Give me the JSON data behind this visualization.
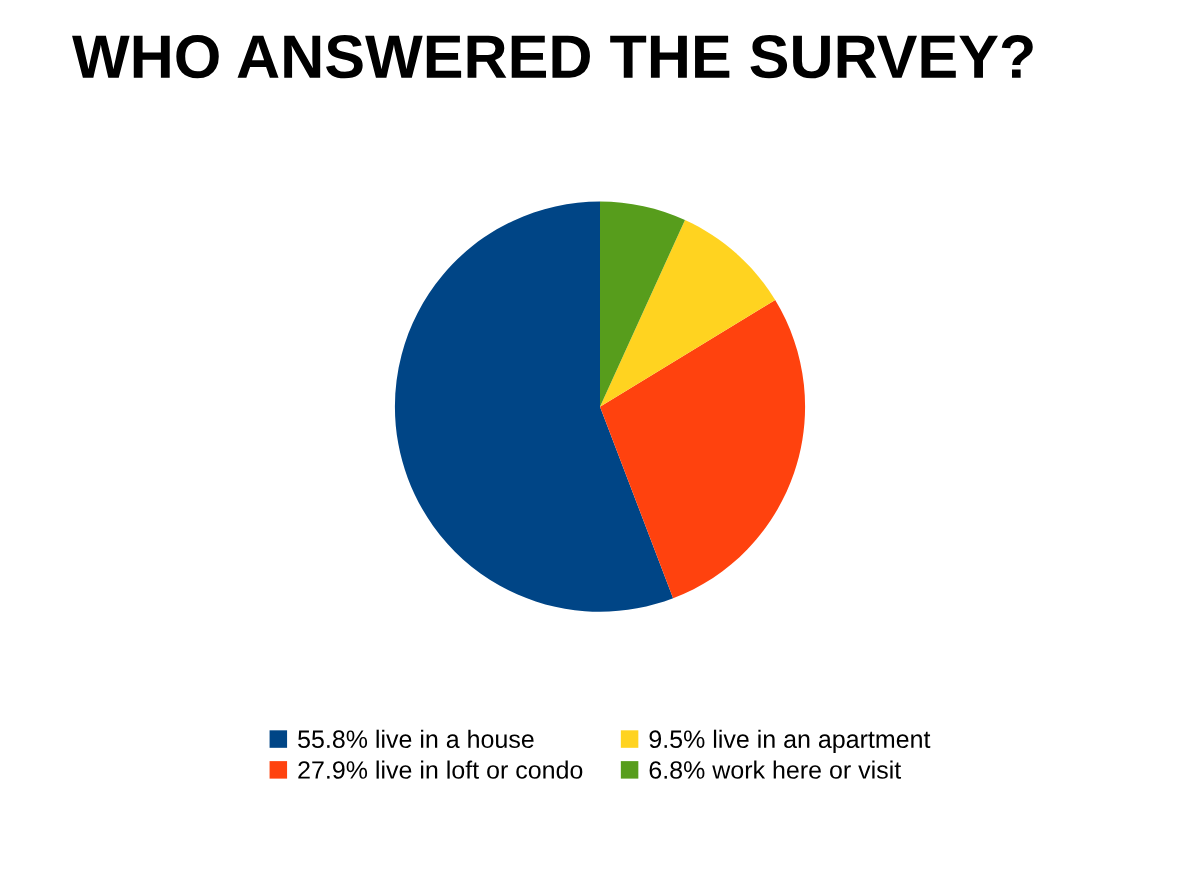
{
  "chart_data": {
    "type": "pie",
    "title": "WHO ANSWERED THE SURVEY?",
    "categories": [
      "55.8% live in a house",
      "27.9% live in loft or condo",
      "9.5% live in an apartment",
      "6.8% work here or visit"
    ],
    "values": [
      55.8,
      27.9,
      9.5,
      6.8
    ],
    "colors": [
      "#004586",
      "#ff420e",
      "#ffd320",
      "#579d1c"
    ],
    "legend": "bottom"
  }
}
